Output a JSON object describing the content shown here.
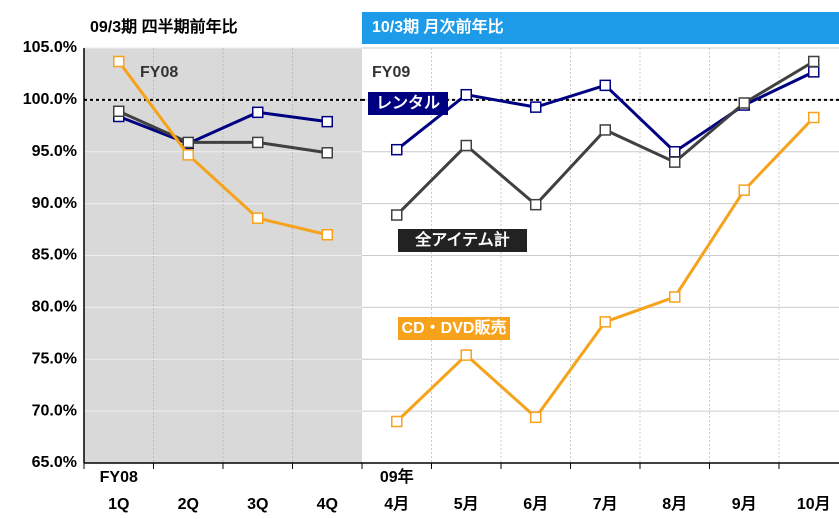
{
  "chart_data": [
    {
      "type": "line",
      "title": "09/3期 四半期前年比",
      "panel_label": "FY08",
      "axis_note": "FY08",
      "categories": [
        "1Q",
        "2Q",
        "3Q",
        "4Q"
      ],
      "ylim": [
        65,
        105
      ],
      "yticks": [
        {
          "value": 65,
          "label": "65.0%"
        },
        {
          "value": 70,
          "label": "70.0%"
        },
        {
          "value": 75,
          "label": "75.0%"
        },
        {
          "value": 80,
          "label": "80.0%"
        },
        {
          "value": 85,
          "label": "85.0%"
        },
        {
          "value": 90,
          "label": "90.0%"
        },
        {
          "value": 95,
          "label": "95.0%"
        },
        {
          "value": 100,
          "label": "100.0%"
        },
        {
          "value": 105,
          "label": "105.0%"
        }
      ],
      "reference_line": 100,
      "grid": true,
      "series": [
        {
          "color": "#000080",
          "values": [
            98.4,
            95.8,
            98.8,
            97.9
          ]
        },
        {
          "color": "#404040",
          "values": [
            98.9,
            95.9,
            95.9,
            94.9
          ]
        },
        {
          "color": "#f7a21b",
          "values": [
            103.7,
            94.7,
            88.6,
            87.0
          ]
        }
      ]
    },
    {
      "type": "line",
      "title": "10/3期 月次前年比",
      "panel_label": "FY09",
      "axis_note": "09年",
      "categories": [
        "4月",
        "5月",
        "6月",
        "7月",
        "8月",
        "9月",
        "10月"
      ],
      "ylim": [
        65,
        105
      ],
      "yticks": [
        65,
        70,
        75,
        80,
        85,
        90,
        95,
        100,
        105
      ],
      "reference_line": 100,
      "grid": true,
      "series": [
        {
          "name": "レンタル",
          "color": "#000080",
          "values": [
            95.2,
            100.5,
            99.3,
            101.4,
            95.0,
            99.5,
            102.7
          ]
        },
        {
          "name": "全アイテム計",
          "color": "#404040",
          "values": [
            88.9,
            95.6,
            89.9,
            97.1,
            94.0,
            99.7,
            103.7
          ]
        },
        {
          "name": "CD・DVD販売",
          "color": "#f7a21b",
          "values": [
            69.0,
            75.4,
            69.4,
            78.6,
            81.0,
            91.3,
            98.3
          ]
        }
      ]
    }
  ]
}
